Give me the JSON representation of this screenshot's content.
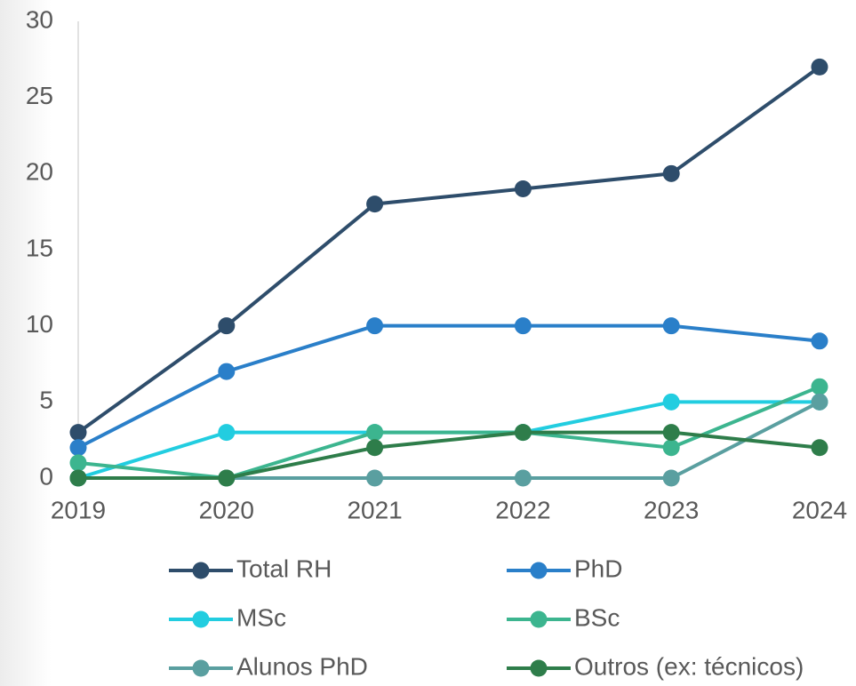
{
  "chart_data": {
    "type": "line",
    "categories": [
      "2019",
      "2020",
      "2021",
      "2022",
      "2023",
      "2024"
    ],
    "series": [
      {
        "name": "Total RH",
        "color": "#2e4d6b",
        "values": [
          3,
          10,
          18,
          19,
          20,
          27
        ]
      },
      {
        "name": "PhD",
        "color": "#2a7fc9",
        "values": [
          2,
          7,
          10,
          10,
          10,
          9
        ]
      },
      {
        "name": "MSc",
        "color": "#22cde0",
        "values": [
          0,
          3,
          3,
          3,
          5,
          5
        ]
      },
      {
        "name": "BSc",
        "color": "#3cb58f",
        "values": [
          1,
          0,
          3,
          3,
          2,
          6
        ]
      },
      {
        "name": "Alunos PhD",
        "color": "#5a9fa0",
        "values": [
          0,
          0,
          0,
          0,
          0,
          5
        ]
      },
      {
        "name": "Outros (ex: técnicos)",
        "color": "#2e7d4a",
        "values": [
          0,
          0,
          2,
          3,
          3,
          2
        ]
      }
    ],
    "ylim": [
      0,
      30
    ],
    "yticks": [
      0,
      5,
      10,
      15,
      20,
      25,
      30
    ],
    "grid": false,
    "legend": "bottom"
  }
}
